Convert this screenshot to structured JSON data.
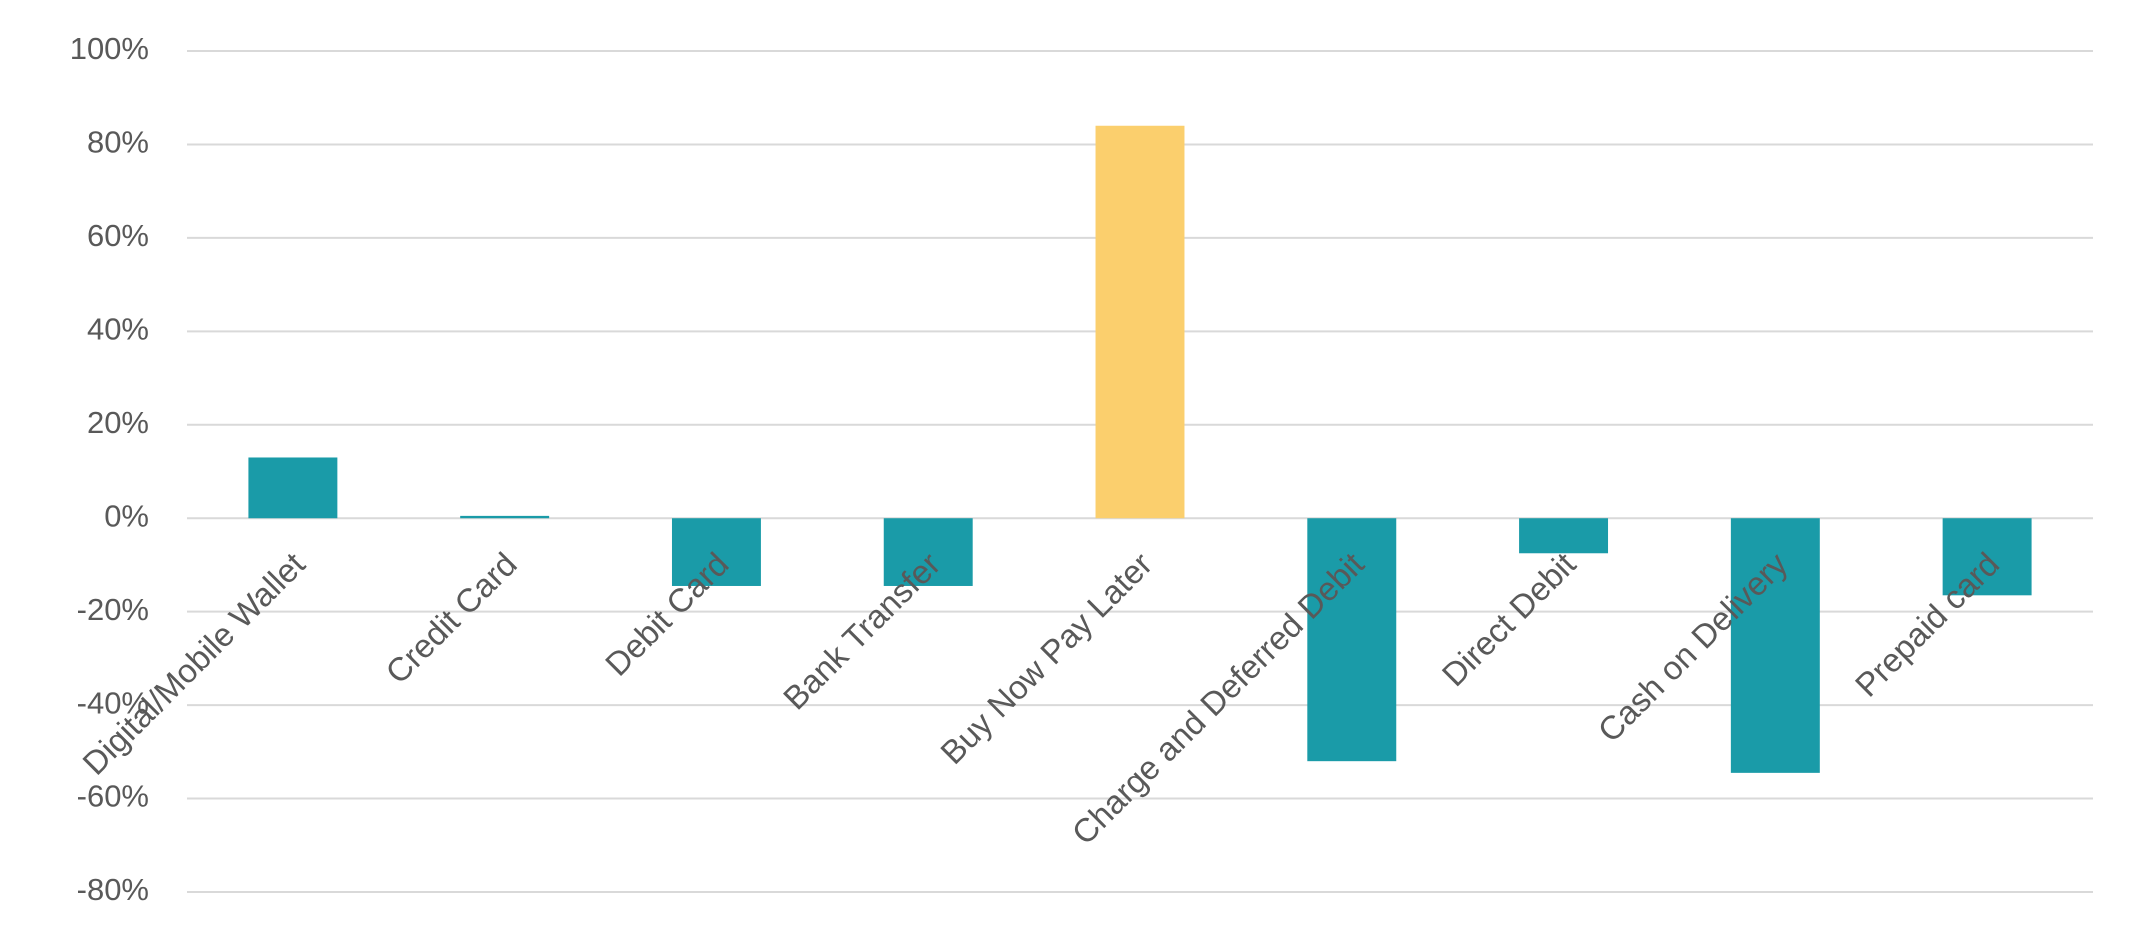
{
  "chart_data": {
    "type": "bar",
    "categories": [
      "Digital/Mobile Wallet",
      "Credit Card",
      "Debit Card",
      "Bank Transfer",
      "Buy Now Pay Later",
      "Charge and Deferred Debit",
      "Direct Debit",
      "Cash on Delivery",
      "Prepaid card"
    ],
    "values": [
      13,
      0.5,
      -14.5,
      -14.5,
      84,
      -52,
      -7.5,
      -54.5,
      -16.5
    ],
    "colors": [
      "#1a9ba8",
      "#1a9ba8",
      "#1a9ba8",
      "#1a9ba8",
      "#fbcf6d",
      "#1a9ba8",
      "#1a9ba8",
      "#1a9ba8",
      "#1a9ba8"
    ],
    "ylim": [
      -80,
      100
    ],
    "yticks": [
      {
        "value": -80,
        "label": "-80%"
      },
      {
        "value": -60,
        "label": "-60%"
      },
      {
        "value": -40,
        "label": "-40%"
      },
      {
        "value": -20,
        "label": "-20%"
      },
      {
        "value": 0,
        "label": "0%"
      },
      {
        "value": 20,
        "label": "20%"
      },
      {
        "value": 40,
        "label": "40%"
      },
      {
        "value": 60,
        "label": "60%"
      },
      {
        "value": 80,
        "label": "80%"
      },
      {
        "value": 100,
        "label": "100%"
      }
    ],
    "grid": true
  }
}
